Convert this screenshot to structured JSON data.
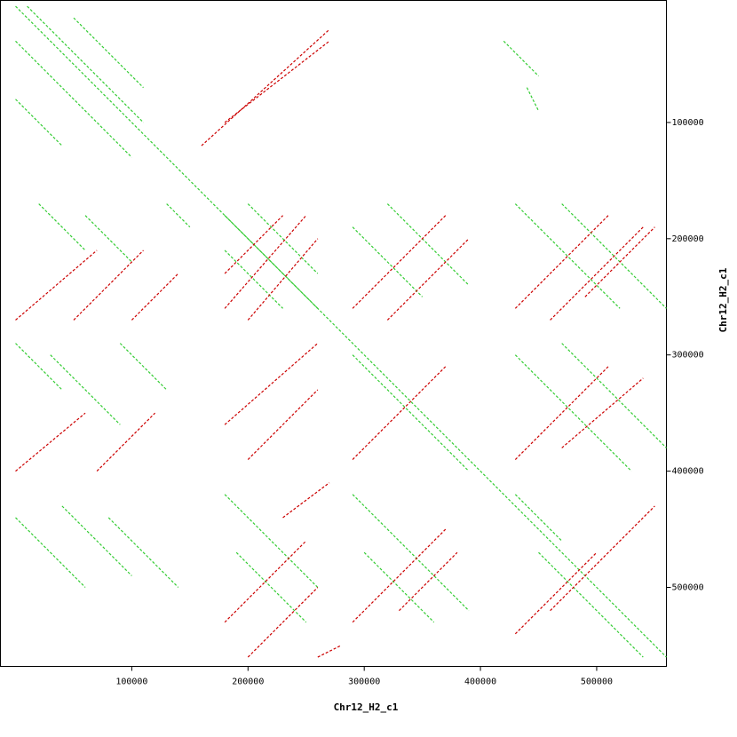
{
  "chart_data": {
    "type": "dotplot",
    "x_label": "Chr12_H2_c1",
    "y_label": "Chr12_H2_c1",
    "xlim": [
      -13000,
      560000
    ],
    "ylim": [
      -5000,
      568000
    ],
    "xticks": [
      100000,
      200000,
      300000,
      400000,
      500000
    ],
    "yticks": [
      100000,
      200000,
      300000,
      400000,
      500000
    ],
    "series": [
      {
        "color": "#33cc33",
        "segments": [
          [
            0,
            0,
            560000,
            560000
          ],
          [
            0,
            30000,
            100000,
            130000
          ],
          [
            10000,
            0,
            110000,
            100000
          ],
          [
            50000,
            10000,
            110000,
            70000
          ],
          [
            0,
            80000,
            40000,
            120000
          ],
          [
            20000,
            170000,
            60000,
            210000
          ],
          [
            60000,
            180000,
            100000,
            220000
          ],
          [
            130000,
            170000,
            150000,
            190000
          ],
          [
            0,
            290000,
            40000,
            330000
          ],
          [
            30000,
            300000,
            90000,
            360000
          ],
          [
            90000,
            290000,
            130000,
            330000
          ],
          [
            180000,
            180000,
            260000,
            260000
          ],
          [
            200000,
            170000,
            260000,
            230000
          ],
          [
            180000,
            210000,
            230000,
            260000
          ],
          [
            290000,
            190000,
            350000,
            250000
          ],
          [
            320000,
            170000,
            390000,
            240000
          ],
          [
            430000,
            170000,
            520000,
            260000
          ],
          [
            470000,
            170000,
            560000,
            260000
          ],
          [
            290000,
            300000,
            390000,
            400000
          ],
          [
            180000,
            420000,
            260000,
            500000
          ],
          [
            190000,
            470000,
            250000,
            530000
          ],
          [
            290000,
            420000,
            390000,
            520000
          ],
          [
            300000,
            470000,
            360000,
            530000
          ],
          [
            430000,
            300000,
            530000,
            400000
          ],
          [
            470000,
            290000,
            560000,
            380000
          ],
          [
            0,
            440000,
            60000,
            500000
          ],
          [
            40000,
            430000,
            100000,
            490000
          ],
          [
            80000,
            440000,
            140000,
            500000
          ],
          [
            430000,
            420000,
            470000,
            460000
          ],
          [
            450000,
            470000,
            540000,
            560000
          ],
          [
            420000,
            30000,
            450000,
            60000
          ],
          [
            440000,
            70000,
            450000,
            90000
          ]
        ]
      },
      {
        "color": "#cc0000",
        "segments": [
          [
            180000,
            260000,
            250000,
            180000
          ],
          [
            200000,
            270000,
            260000,
            200000
          ],
          [
            180000,
            230000,
            230000,
            180000
          ],
          [
            290000,
            260000,
            370000,
            180000
          ],
          [
            320000,
            270000,
            390000,
            200000
          ],
          [
            430000,
            260000,
            510000,
            180000
          ],
          [
            460000,
            270000,
            540000,
            190000
          ],
          [
            490000,
            250000,
            550000,
            190000
          ],
          [
            180000,
            360000,
            260000,
            290000
          ],
          [
            200000,
            390000,
            260000,
            330000
          ],
          [
            290000,
            390000,
            370000,
            310000
          ],
          [
            430000,
            390000,
            510000,
            310000
          ],
          [
            470000,
            380000,
            540000,
            320000
          ],
          [
            180000,
            530000,
            250000,
            460000
          ],
          [
            200000,
            560000,
            260000,
            500000
          ],
          [
            290000,
            530000,
            370000,
            450000
          ],
          [
            330000,
            520000,
            380000,
            470000
          ],
          [
            430000,
            540000,
            500000,
            470000
          ],
          [
            460000,
            520000,
            550000,
            430000
          ],
          [
            0,
            270000,
            70000,
            210000
          ],
          [
            50000,
            270000,
            110000,
            210000
          ],
          [
            100000,
            270000,
            140000,
            230000
          ],
          [
            160000,
            120000,
            270000,
            20000
          ],
          [
            180000,
            100000,
            270000,
            30000
          ],
          [
            0,
            400000,
            60000,
            350000
          ],
          [
            70000,
            400000,
            120000,
            350000
          ],
          [
            230000,
            440000,
            270000,
            410000
          ],
          [
            260000,
            560000,
            280000,
            550000
          ]
        ]
      }
    ]
  }
}
